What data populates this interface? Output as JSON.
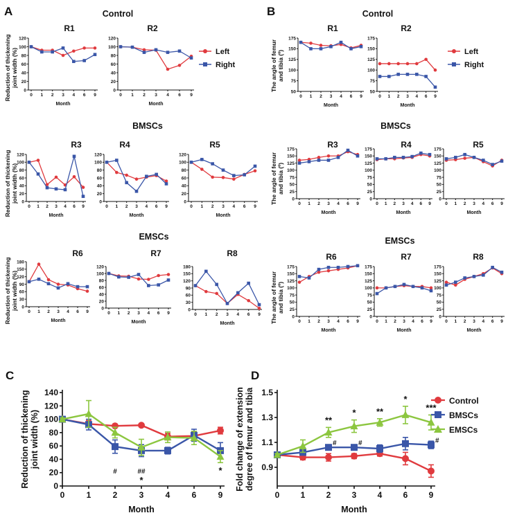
{
  "colors": {
    "control": "#e03a3e",
    "bmscs": "#3a56a8",
    "emscs": "#8cc63f",
    "left": "#e03a3e",
    "right": "#3a56a8",
    "text": "#111111"
  },
  "panels": {
    "A": {
      "letter": "A",
      "xlabel": "Month",
      "ylabel_line1": "Reduction of thickening",
      "ylabel_line2": "joint width (%)"
    },
    "B": {
      "letter": "B",
      "xlabel": "Month",
      "ylabel_line1": "The angle of femur",
      "ylabel_line2": "and tibia (º)"
    },
    "C": {
      "letter": "C"
    },
    "D": {
      "letter": "D"
    }
  },
  "legend_small": {
    "left": "Left",
    "right": "Right"
  },
  "groups": {
    "control": "Control",
    "bmscs": "BMSCs",
    "emscs": "EMSCs"
  },
  "chart_data": [
    {
      "panel": "A",
      "type": "line",
      "group": "Control",
      "title": "R1",
      "categories": [
        "0",
        "1",
        "2",
        "3",
        "4",
        "6",
        "9"
      ],
      "ylim": [
        0,
        120
      ],
      "yticks": [
        "0",
        "20",
        "40",
        "60",
        "80",
        "100",
        "120"
      ],
      "series": [
        {
          "name": "Left",
          "values": [
            100,
            92,
            92,
            80,
            90,
            97,
            97
          ]
        },
        {
          "name": "Right",
          "values": [
            100,
            88,
            88,
            97,
            66,
            68,
            82
          ]
        }
      ]
    },
    {
      "panel": "A",
      "type": "line",
      "group": "Control",
      "title": "R2",
      "categories": [
        "0",
        "1",
        "2",
        "3",
        "4",
        "6",
        "9"
      ],
      "ylim": [
        0,
        120
      ],
      "yticks": [
        "0",
        "20",
        "40",
        "60",
        "80",
        "100",
        "120"
      ],
      "series": [
        {
          "name": "Left",
          "values": [
            100,
            99,
            93,
            92,
            48,
            57,
            78
          ]
        },
        {
          "name": "Right",
          "values": [
            100,
            99,
            87,
            93,
            87,
            90,
            74
          ]
        }
      ]
    },
    {
      "panel": "A",
      "type": "line",
      "group": "BMSCs",
      "title": "R3",
      "categories": [
        "0",
        "1",
        "2",
        "3",
        "4",
        "6",
        "9"
      ],
      "ylim": [
        0,
        120
      ],
      "yticks": [
        "0",
        "20",
        "40",
        "60",
        "80",
        "100",
        "120"
      ],
      "series": [
        {
          "name": "Left",
          "values": [
            100,
            105,
            43,
            62,
            42,
            63,
            36
          ]
        },
        {
          "name": "Right",
          "values": [
            100,
            70,
            35,
            32,
            30,
            115,
            13
          ]
        }
      ]
    },
    {
      "panel": "A",
      "type": "line",
      "group": "BMSCs",
      "title": "R4",
      "categories": [
        "0",
        "1",
        "2",
        "3",
        "4",
        "6",
        "9"
      ],
      "ylim": [
        0,
        120
      ],
      "yticks": [
        "0",
        "20",
        "40",
        "60",
        "80",
        "100",
        "120"
      ],
      "series": [
        {
          "name": "Left",
          "values": [
            100,
            74,
            67,
            57,
            62,
            66,
            52
          ]
        },
        {
          "name": "Right",
          "values": [
            100,
            105,
            48,
            26,
            64,
            69,
            45
          ]
        }
      ]
    },
    {
      "panel": "A",
      "type": "line",
      "group": "BMSCs",
      "title": "R5",
      "categories": [
        "0",
        "1",
        "2",
        "3",
        "4",
        "6",
        "9"
      ],
      "ylim": [
        0,
        120
      ],
      "yticks": [
        "0",
        "20",
        "40",
        "60",
        "80",
        "100",
        "120"
      ],
      "series": [
        {
          "name": "Left",
          "values": [
            100,
            82,
            62,
            61,
            57,
            69,
            78
          ]
        },
        {
          "name": "Right",
          "values": [
            100,
            107,
            96,
            80,
            66,
            68,
            90
          ]
        }
      ]
    },
    {
      "panel": "A",
      "type": "line",
      "group": "EMSCs",
      "title": "R6",
      "categories": [
        "0",
        "1",
        "2",
        "3",
        "4",
        "6",
        "9"
      ],
      "ylim": [
        0,
        180
      ],
      "yticks": [
        "0",
        "30",
        "60",
        "90",
        "120",
        "150",
        "180"
      ],
      "series": [
        {
          "name": "Left",
          "values": [
            100,
            170,
            108,
            90,
            87,
            72,
            62
          ]
        },
        {
          "name": "Right",
          "values": [
            100,
            110,
            92,
            75,
            92,
            80,
            80
          ]
        }
      ]
    },
    {
      "panel": "A",
      "type": "line",
      "group": "EMSCs",
      "title": "R7",
      "categories": [
        "0",
        "1",
        "2",
        "3",
        "4",
        "6",
        "9"
      ],
      "ylim": [
        0,
        120
      ],
      "yticks": [
        "0",
        "20",
        "40",
        "60",
        "80",
        "100",
        "120"
      ],
      "series": [
        {
          "name": "Left",
          "values": [
            100,
            93,
            92,
            84,
            83,
            94,
            97
          ]
        },
        {
          "name": "Right",
          "values": [
            100,
            90,
            89,
            97,
            65,
            67,
            81
          ]
        }
      ]
    },
    {
      "panel": "A",
      "type": "line",
      "group": "EMSCs",
      "title": "R8",
      "categories": [
        "0",
        "1",
        "2",
        "3",
        "4",
        "6",
        "9"
      ],
      "ylim": [
        0,
        180
      ],
      "yticks": [
        "0",
        "30",
        "60",
        "90",
        "120",
        "150",
        "180"
      ],
      "series": [
        {
          "name": "Left",
          "values": [
            100,
            75,
            67,
            25,
            63,
            37,
            5
          ]
        },
        {
          "name": "Right",
          "values": [
            100,
            160,
            105,
            25,
            70,
            110,
            20
          ]
        }
      ]
    },
    {
      "panel": "B",
      "type": "line",
      "group": "Control",
      "title": "R1",
      "categories": [
        "0",
        "1",
        "2",
        "3",
        "4",
        "6",
        "9"
      ],
      "ylim": [
        50,
        175
      ],
      "yticks": [
        "50",
        "75",
        "100",
        "125",
        "150",
        "175"
      ],
      "series": [
        {
          "name": "Left",
          "values": [
            165,
            163,
            158,
            157,
            160,
            152,
            158
          ]
        },
        {
          "name": "Right",
          "values": [
            165,
            150,
            150,
            155,
            165,
            150,
            155
          ]
        }
      ]
    },
    {
      "panel": "B",
      "type": "line",
      "group": "Control",
      "title": "R2",
      "categories": [
        "0",
        "1",
        "2",
        "3",
        "4",
        "6",
        "9"
      ],
      "ylim": [
        50,
        175
      ],
      "yticks": [
        "50",
        "75",
        "100",
        "125",
        "150",
        "175"
      ],
      "series": [
        {
          "name": "Left",
          "values": [
            115,
            115,
            115,
            115,
            115,
            125,
            100
          ]
        },
        {
          "name": "Right",
          "values": [
            85,
            85,
            90,
            90,
            90,
            85,
            60
          ]
        }
      ]
    },
    {
      "panel": "B",
      "type": "line",
      "group": "BMSCs",
      "title": "R3",
      "categories": [
        "0",
        "1",
        "2",
        "3",
        "4",
        "6",
        "9"
      ],
      "ylim": [
        0,
        175
      ],
      "yticks": [
        "0",
        "25",
        "50",
        "75",
        "100",
        "125",
        "150",
        "175"
      ],
      "series": [
        {
          "name": "Left",
          "values": [
            135,
            138,
            145,
            150,
            150,
            165,
            155
          ]
        },
        {
          "name": "Right",
          "values": [
            125,
            130,
            135,
            135,
            145,
            170,
            150
          ]
        }
      ]
    },
    {
      "panel": "B",
      "type": "line",
      "group": "BMSCs",
      "title": "R4",
      "categories": [
        "0",
        "1",
        "2",
        "3",
        "4",
        "6",
        "9"
      ],
      "ylim": [
        0,
        175
      ],
      "yticks": [
        "0",
        "25",
        "50",
        "75",
        "100",
        "125",
        "150",
        "175"
      ],
      "series": [
        {
          "name": "Left",
          "values": [
            137,
            140,
            140,
            143,
            145,
            155,
            150
          ]
        },
        {
          "name": "Right",
          "values": [
            140,
            140,
            145,
            145,
            148,
            160,
            155
          ]
        }
      ]
    },
    {
      "panel": "B",
      "type": "line",
      "group": "BMSCs",
      "title": "R5",
      "categories": [
        "0",
        "1",
        "2",
        "3",
        "4",
        "6",
        "9"
      ],
      "ylim": [
        0,
        175
      ],
      "yticks": [
        "0",
        "25",
        "50",
        "75",
        "100",
        "125",
        "150",
        "175"
      ],
      "series": [
        {
          "name": "Left",
          "values": [
            135,
            137,
            142,
            145,
            130,
            115,
            135
          ]
        },
        {
          "name": "Right",
          "values": [
            140,
            145,
            155,
            145,
            135,
            120,
            132
          ]
        }
      ]
    },
    {
      "panel": "B",
      "type": "line",
      "group": "EMSCs",
      "title": "R6",
      "categories": [
        "0",
        "1",
        "2",
        "3",
        "4",
        "6",
        "9"
      ],
      "ylim": [
        0,
        175
      ],
      "yticks": [
        "0",
        "25",
        "50",
        "75",
        "100",
        "125",
        "150",
        "175"
      ],
      "series": [
        {
          "name": "Left",
          "values": [
            120,
            140,
            155,
            160,
            165,
            170,
            178
          ]
        },
        {
          "name": "Right",
          "values": [
            140,
            135,
            165,
            172,
            172,
            175,
            178
          ]
        }
      ]
    },
    {
      "panel": "B",
      "type": "line",
      "group": "EMSCs",
      "title": "R7",
      "categories": [
        "0",
        "1",
        "2",
        "3",
        "4",
        "6",
        "9"
      ],
      "ylim": [
        0,
        175
      ],
      "yticks": [
        "0",
        "25",
        "50",
        "75",
        "100",
        "125",
        "150",
        "175"
      ],
      "series": [
        {
          "name": "Left",
          "values": [
            100,
            100,
            105,
            108,
            105,
            105,
            100
          ]
        },
        {
          "name": "Right",
          "values": [
            80,
            100,
            105,
            112,
            105,
            100,
            90
          ]
        }
      ]
    },
    {
      "panel": "B",
      "type": "line",
      "group": "EMSCs",
      "title": "R8",
      "categories": [
        "0",
        "1",
        "2",
        "3",
        "4",
        "6",
        "9"
      ],
      "ylim": [
        0,
        175
      ],
      "yticks": [
        "0",
        "25",
        "50",
        "75",
        "100",
        "125",
        "150",
        "175"
      ],
      "series": [
        {
          "name": "Left",
          "values": [
            120,
            110,
            130,
            140,
            150,
            170,
            150
          ]
        },
        {
          "name": "Right",
          "values": [
            110,
            120,
            135,
            140,
            145,
            172,
            155
          ]
        }
      ]
    },
    {
      "panel": "C",
      "type": "line",
      "title": "",
      "xlabel": "Month",
      "ylabel_line1": "Reduction of thickening",
      "ylabel_line2": "joint width (%)",
      "categories": [
        "0",
        "1",
        "2",
        "3",
        "4",
        "6",
        "9"
      ],
      "ylim": [
        0,
        140
      ],
      "yticks": [
        "0",
        "20",
        "40",
        "60",
        "80",
        "100",
        "120",
        "140"
      ],
      "series": [
        {
          "name": "Control",
          "values": [
            100,
            93,
            90,
            91,
            74,
            75,
            83
          ],
          "err": [
            2,
            5,
            2,
            2,
            5,
            6,
            5
          ]
        },
        {
          "name": "BMSCs",
          "values": [
            100,
            92,
            59,
            53,
            53,
            76,
            53
          ],
          "err": [
            2,
            8,
            10,
            9,
            5,
            9,
            12
          ]
        },
        {
          "name": "EMSCs",
          "values": [
            100,
            108,
            80,
            58,
            73,
            72,
            44
          ],
          "err": [
            2,
            20,
            8,
            12,
            8,
            10,
            9
          ]
        }
      ],
      "annotations": [
        {
          "category": "2",
          "marks": [
            "#"
          ]
        },
        {
          "category": "3",
          "marks": [
            "##",
            "*"
          ]
        },
        {
          "category": "9",
          "marks": [
            "*"
          ]
        }
      ]
    },
    {
      "panel": "D",
      "type": "line",
      "title": "",
      "xlabel": "Month",
      "ylabel_line1": "Fold change of extension",
      "ylabel_line2": "degree  of femur and tibia",
      "categories": [
        "0",
        "1",
        "2",
        "3",
        "4",
        "6",
        "9"
      ],
      "ylim": [
        0.75,
        1.5
      ],
      "yticks": [
        "0.9",
        "1.1",
        "1.3",
        "1.5"
      ],
      "ytick_values": [
        0.9,
        1.1,
        1.3,
        1.5
      ],
      "series": [
        {
          "name": "Control",
          "values": [
            1.0,
            0.98,
            0.98,
            0.99,
            1.01,
            0.97,
            0.87
          ],
          "err": [
            0.01,
            0.02,
            0.03,
            0.02,
            0.02,
            0.05,
            0.05
          ]
        },
        {
          "name": "BMSCs",
          "values": [
            1.0,
            1.02,
            1.06,
            1.06,
            1.05,
            1.09,
            1.08
          ],
          "err": [
            0.01,
            0.02,
            0.02,
            0.02,
            0.03,
            0.05,
            0.03
          ]
        },
        {
          "name": "EMSCs",
          "values": [
            1.0,
            1.07,
            1.18,
            1.23,
            1.26,
            1.32,
            1.26
          ],
          "err": [
            0.01,
            0.05,
            0.04,
            0.05,
            0.03,
            0.07,
            0.06
          ]
        }
      ],
      "annotations": [
        {
          "category": "2",
          "marks": [
            "**",
            "#"
          ]
        },
        {
          "category": "3",
          "marks": [
            "*",
            "#"
          ]
        },
        {
          "category": "4",
          "marks": [
            "**"
          ]
        },
        {
          "category": "6",
          "marks": [
            "*"
          ]
        },
        {
          "category": "9",
          "marks": [
            "***",
            "#"
          ]
        }
      ]
    }
  ]
}
